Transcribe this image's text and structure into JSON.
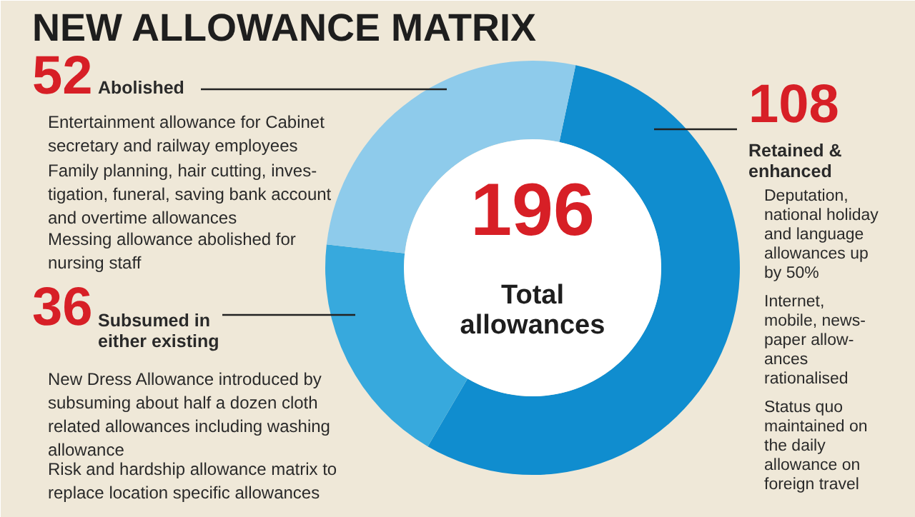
{
  "chart_data": {
    "type": "donut",
    "title": "NEW ALLOWANCE MATRIX",
    "categories": [
      "Retained &\nenhanced",
      "Subsumed in\neither existing",
      "Abolished"
    ],
    "values": [
      108,
      36,
      52
    ],
    "colors": [
      "#108dcf",
      "#37a9dd",
      "#8ecbeb"
    ],
    "data_labels": true,
    "annotations": [
      "196",
      "Total\nallowances",
      "Deputation,\nnational holiday\nand language\nallowances up\nby 50%",
      "Internet,\nmobile, news-\npaper allow-\nances\nrationalised",
      "Status quo\nmaintained on\nthe daily\nallowance on\nforeign travel",
      "New Dress Allowance introduced by\nsubsuming about half a dozen cloth\nrelated allowances including washing\nallowance",
      "Risk and hardship allowance matrix to\nreplace location specific allowances",
      "Entertainment allowance for Cabinet\nsecretary and railway employees",
      "Family planning, hair cutting, inves-\ntigation, funeral, saving bank account\nand overtime allowances",
      "Messing allowance abolished for\nnursing staff"
    ]
  }
}
